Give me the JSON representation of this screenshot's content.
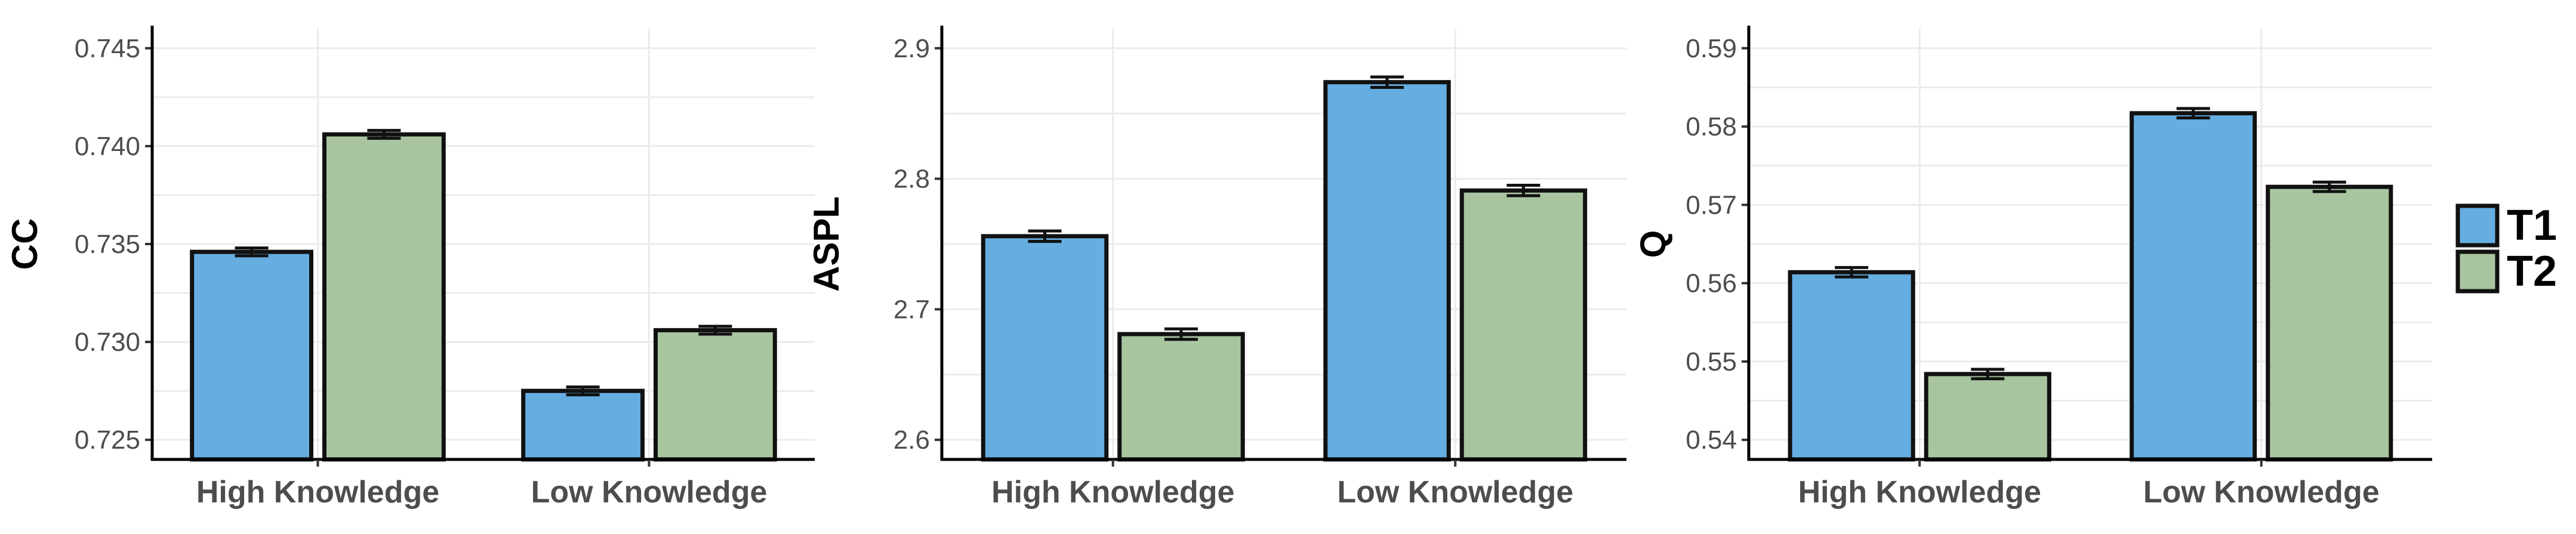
{
  "chart_data": [
    {
      "type": "bar",
      "title": "",
      "xlabel": "",
      "ylabel": "CC",
      "categories": [
        "High Knowledge",
        "Low Knowledge"
      ],
      "ylim": [
        0.724,
        0.746
      ],
      "yticks": [
        0.725,
        0.73,
        0.735,
        0.74,
        0.745
      ],
      "ytick_labels": [
        "0.725",
        "0.730",
        "0.735",
        "0.740",
        "0.745"
      ],
      "series": [
        {
          "name": "T1",
          "values": [
            0.7346,
            0.7275
          ],
          "errors": [
            0.0002,
            0.0002
          ]
        },
        {
          "name": "T2",
          "values": [
            0.7406,
            0.7306
          ],
          "errors": [
            0.0002,
            0.0002
          ]
        }
      ]
    },
    {
      "type": "bar",
      "title": "",
      "xlabel": "",
      "ylabel": "ASPL",
      "categories": [
        "High Knowledge",
        "Low Knowledge"
      ],
      "ylim": [
        2.585,
        2.915
      ],
      "yticks": [
        2.6,
        2.7,
        2.8,
        2.9
      ],
      "ytick_labels": [
        "2.6",
        "2.7",
        "2.8",
        "2.9"
      ],
      "series": [
        {
          "name": "T1",
          "values": [
            2.756,
            2.874
          ],
          "errors": [
            0.004,
            0.004
          ]
        },
        {
          "name": "T2",
          "values": [
            2.681,
            2.791
          ],
          "errors": [
            0.004,
            0.004
          ]
        }
      ]
    },
    {
      "type": "bar",
      "title": "",
      "xlabel": "",
      "ylabel": "Q",
      "categories": [
        "High Knowledge",
        "Low Knowledge"
      ],
      "ylim": [
        0.5375,
        0.5925
      ],
      "yticks": [
        0.54,
        0.55,
        0.56,
        0.57,
        0.58,
        0.59
      ],
      "ytick_labels": [
        "0.54",
        "0.55",
        "0.56",
        "0.57",
        "0.58",
        "0.59"
      ],
      "series": [
        {
          "name": "T1",
          "values": [
            0.5614,
            0.5817
          ],
          "errors": [
            0.0006,
            0.0006
          ]
        },
        {
          "name": "T2",
          "values": [
            0.5484,
            0.5723
          ],
          "errors": [
            0.0006,
            0.0006
          ]
        }
      ]
    }
  ],
  "legend": {
    "placement": "right",
    "items": [
      {
        "label": "T1",
        "color": "#66ade1"
      },
      {
        "label": "T2",
        "color": "#a8c5a0"
      }
    ]
  },
  "colors": {
    "T1": "#66ade1",
    "T2": "#a8c5a0"
  },
  "grid": true
}
